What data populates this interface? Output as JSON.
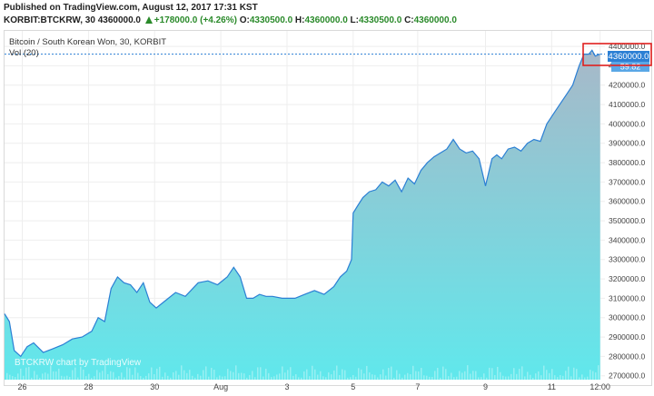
{
  "header": {
    "published": "Published on TradingView.com, August 12, 2017 17:31 KST",
    "symbol": "KORBIT:BTCKRW, 30",
    "last": "4360000.0",
    "change": "+178000.0 (+4.26%)",
    "o_label": "O:",
    "o": "4330500.0",
    "h_label": "H:",
    "h": "4360000.0",
    "l_label": "L:",
    "l": "4330500.0",
    "c_label": "C:",
    "c": "4360000.0"
  },
  "legend": {
    "title": "Bitcoin / South Korean Won, 30, KORBIT",
    "volume": "Vol (20)"
  },
  "price_badge": "4360000.0",
  "volume_badge": "59.82",
  "watermark": "BTCKRW chart by TradingView",
  "colors": {
    "line": "#2b7fd4",
    "area_top": "#a8b8c8",
    "area_bottom": "#60e8ec",
    "highlight": "#e0201e",
    "badge": "#2b7fd4"
  },
  "chart_data": {
    "type": "area",
    "ylim": [
      2680000,
      4480000
    ],
    "yticks": [
      2700000,
      2800000,
      2900000,
      3000000,
      3100000,
      3200000,
      3300000,
      3400000,
      3500000,
      3600000,
      3700000,
      3800000,
      3900000,
      4000000,
      4100000,
      4200000,
      4300000,
      4400000
    ],
    "ytick_labels": [
      "2700000.0",
      "2800000.0",
      "2900000.0",
      "3000000.0",
      "3100000.0",
      "3200000.0",
      "3300000.0",
      "3400000.0",
      "3500000.0",
      "3600000.0",
      "3700000.0",
      "3800000.0",
      "3900000.0",
      "4000000.0",
      "4100000.0",
      "4200000.0",
      "4300000.0",
      "4400000.0"
    ],
    "xlim": [
      0,
      18.6
    ],
    "xticks": [
      0.55,
      2.6,
      4.65,
      6.7,
      8.75,
      10.8,
      12.8,
      14.9,
      16.95,
      18.45
    ],
    "xtick_labels": [
      "26",
      "28",
      "30",
      "Aug",
      "3",
      "5",
      "7",
      "9",
      "11",
      "12:00"
    ],
    "x": [
      0,
      0.15,
      0.3,
      0.5,
      0.7,
      0.9,
      1.2,
      1.5,
      1.8,
      2.1,
      2.4,
      2.7,
      2.9,
      3.1,
      3.3,
      3.5,
      3.7,
      3.9,
      4.1,
      4.3,
      4.5,
      4.7,
      5.0,
      5.3,
      5.6,
      6.0,
      6.3,
      6.6,
      6.9,
      7.1,
      7.3,
      7.5,
      7.7,
      7.9,
      8.1,
      8.3,
      8.6,
      9.0,
      9.3,
      9.6,
      9.9,
      10.2,
      10.4,
      10.6,
      10.75,
      10.8,
      10.95,
      11.1,
      11.3,
      11.5,
      11.7,
      11.9,
      12.1,
      12.3,
      12.5,
      12.7,
      12.9,
      13.1,
      13.3,
      13.5,
      13.7,
      13.9,
      14.1,
      14.3,
      14.5,
      14.7,
      14.9,
      15.1,
      15.25,
      15.4,
      15.6,
      15.8,
      16.0,
      16.2,
      16.4,
      16.6,
      16.8,
      17.0,
      17.2,
      17.4,
      17.6,
      17.8,
      17.95,
      18.1,
      18.2,
      18.3,
      18.45
    ],
    "values": [
      3020000,
      2980000,
      2830000,
      2800000,
      2850000,
      2870000,
      2820000,
      2840000,
      2860000,
      2890000,
      2900000,
      2930000,
      3000000,
      2980000,
      3150000,
      3210000,
      3180000,
      3170000,
      3130000,
      3180000,
      3080000,
      3050000,
      3090000,
      3130000,
      3110000,
      3180000,
      3190000,
      3170000,
      3210000,
      3260000,
      3210000,
      3100000,
      3100000,
      3120000,
      3110000,
      3110000,
      3100000,
      3100000,
      3120000,
      3140000,
      3120000,
      3160000,
      3210000,
      3240000,
      3300000,
      3540000,
      3580000,
      3620000,
      3650000,
      3660000,
      3700000,
      3680000,
      3710000,
      3650000,
      3720000,
      3690000,
      3760000,
      3800000,
      3830000,
      3850000,
      3870000,
      3920000,
      3870000,
      3850000,
      3860000,
      3820000,
      3680000,
      3820000,
      3840000,
      3820000,
      3870000,
      3880000,
      3860000,
      3900000,
      3920000,
      3910000,
      4000000,
      4050000,
      4100000,
      4150000,
      4200000,
      4300000,
      4360000,
      4360000,
      4380000,
      4350000,
      4360000
    ]
  }
}
